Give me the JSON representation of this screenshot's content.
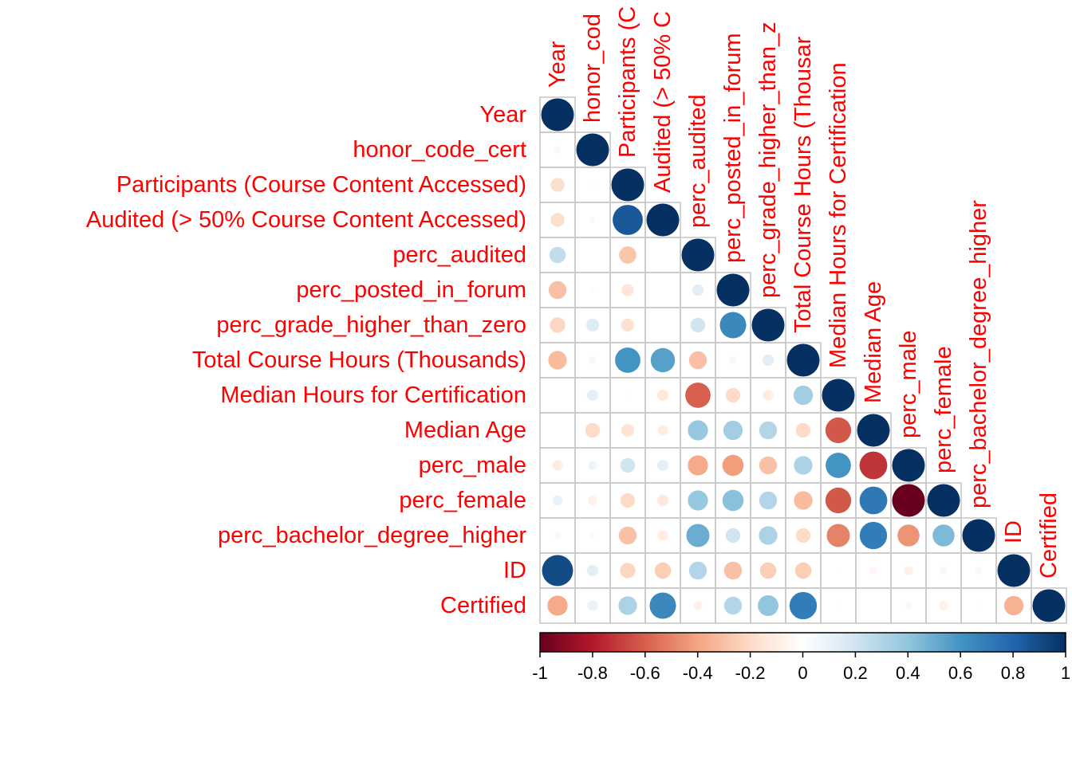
{
  "chart_data": {
    "type": "heatmap",
    "subtype": "correlation-matrix-lower-triangle-circles",
    "variables": [
      "Year",
      "honor_code_cert",
      "Participants (Course Content Accessed)",
      "Audited (> 50% Course Content Accessed)",
      "perc_audited",
      "perc_posted_in_forum",
      "perc_grade_higher_than_zero",
      "Total Course Hours (Thousands)",
      "Median Hours for Certification",
      "Median Age",
      "perc_male",
      "perc_female",
      "perc_bachelor_degree_higher",
      "ID",
      "Certified"
    ],
    "column_labels": [
      "Year",
      "honor_cod",
      "Participants (C",
      "Audited (> 50% C",
      "perc_audited",
      "perc_posted_in_forum",
      "perc_grade_higher_than_z",
      "Total Course Hours (Thousar",
      "Median Hours for Certification",
      "Median Age",
      "perc_male",
      "perc_female",
      "perc_bachelor_degree_higher",
      "ID",
      "Certified"
    ],
    "matrix_lower": [
      [
        1.0
      ],
      [
        0.05,
        1.0
      ],
      [
        -0.18,
        0.02,
        1.0
      ],
      [
        -0.18,
        0.04,
        0.85,
        1.0
      ],
      [
        0.25,
        0.0,
        -0.28,
        0.0,
        1.0
      ],
      [
        -0.3,
        0.02,
        -0.14,
        0.0,
        0.12,
        1.0
      ],
      [
        -0.22,
        0.15,
        -0.16,
        0.0,
        0.2,
        0.65,
        1.0
      ],
      [
        -0.32,
        0.05,
        0.6,
        0.55,
        -0.3,
        0.05,
        0.12,
        1.0
      ],
      [
        0.0,
        0.12,
        0.02,
        -0.12,
        -0.6,
        -0.2,
        -0.1,
        0.35,
        1.0
      ],
      [
        0.0,
        -0.2,
        -0.15,
        -0.1,
        0.38,
        0.35,
        0.3,
        -0.2,
        -0.62,
        1.0
      ],
      [
        -0.1,
        0.08,
        0.2,
        0.12,
        -0.38,
        -0.42,
        -0.3,
        0.32,
        0.6,
        -0.72,
        1.0
      ],
      [
        0.1,
        -0.08,
        -0.2,
        -0.12,
        0.38,
        0.42,
        0.3,
        -0.32,
        -0.62,
        0.72,
        -1.0,
        1.0
      ],
      [
        0.05,
        -0.03,
        -0.3,
        -0.1,
        0.5,
        0.2,
        0.32,
        -0.2,
        -0.5,
        0.7,
        -0.45,
        0.45,
        1.0
      ],
      [
        0.9,
        0.12,
        -0.22,
        -0.25,
        0.3,
        -0.3,
        -0.25,
        -0.25,
        -0.02,
        -0.05,
        -0.08,
        0.05,
        0.05,
        1.0
      ],
      [
        -0.38,
        0.1,
        0.32,
        0.65,
        -0.08,
        0.3,
        0.4,
        0.7,
        -0.02,
        0.0,
        0.05,
        -0.08,
        0.02,
        -0.35,
        1.0
      ]
    ],
    "colorbar": {
      "ticks": [
        "-1",
        "-0.8",
        "-0.6",
        "-0.4",
        "-0.2",
        "0",
        "0.2",
        "0.4",
        "0.6",
        "0.8",
        "1"
      ],
      "range": [
        -1,
        1
      ],
      "palette": [
        "#67001F",
        "#B2182B",
        "#D6604D",
        "#F4A582",
        "#FDDBC7",
        "#FFFFFF",
        "#D1E5F0",
        "#92C5DE",
        "#4393C3",
        "#2166AC",
        "#053061"
      ]
    },
    "label_color": "#ff0000",
    "grid_color": "#c8c8c8"
  }
}
